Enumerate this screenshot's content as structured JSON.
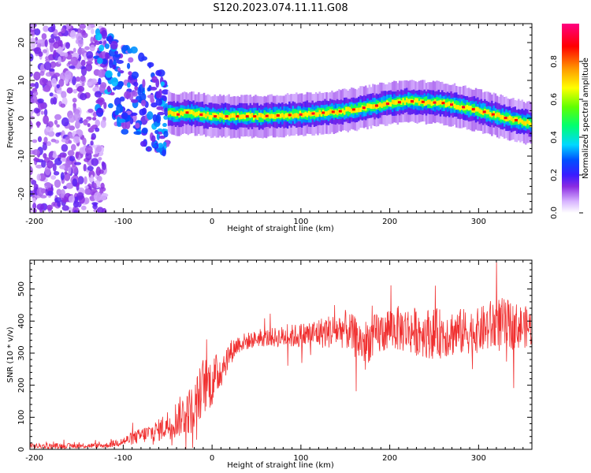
{
  "title": "S120.2023.074.11.11.G08",
  "chart_data": [
    {
      "type": "heatmap",
      "xlabel": "Height of straight line (km)",
      "ylabel": "Frequency (Hz)",
      "xlim": [
        -205,
        360
      ],
      "ylim": [
        -25,
        25
      ],
      "xticks": [
        -200,
        -100,
        0,
        100,
        200,
        300
      ],
      "yticks": [
        -20,
        -10,
        0,
        10,
        20
      ],
      "grid": false,
      "colorbar": {
        "label": "Normalized spectral amplitude",
        "range": [
          0,
          1
        ],
        "ticks": [
          "0.0",
          "0.2",
          "0.4",
          "0.6",
          "0.8"
        ],
        "colormap": "white-violet-blue-cyan-green-yellow-orange-red-magenta"
      },
      "ridge": {
        "description_points_x": [
          -50,
          -40,
          -30,
          0,
          50,
          100,
          150,
          200,
          220,
          260,
          300,
          330,
          360
        ],
        "frequency_hz": [
          1.5,
          1.0,
          1.5,
          0.5,
          0.5,
          1.0,
          2.0,
          4.0,
          4.5,
          4.0,
          2.0,
          0.0,
          -1.5
        ]
      }
    },
    {
      "type": "line",
      "xlabel": "Height of straight line (km)",
      "ylabel": "SNR (10 * v/v)",
      "xlim": [
        -205,
        360
      ],
      "ylim": [
        0,
        590
      ],
      "xticks": [
        -200,
        -100,
        0,
        100,
        200,
        300
      ],
      "yticks": [
        0,
        100,
        200,
        300,
        400,
        500
      ],
      "color": "#f03030",
      "grid": false,
      "envelope_x": [
        -205,
        -120,
        -100,
        -60,
        -40,
        -20,
        -10,
        0,
        10,
        20,
        30,
        50,
        100,
        150,
        170,
        200,
        250,
        300,
        320,
        360
      ],
      "envelope_mean": [
        10,
        12,
        25,
        60,
        95,
        130,
        200,
        210,
        250,
        300,
        330,
        345,
        355,
        375,
        330,
        380,
        360,
        370,
        390,
        380
      ],
      "envelope_spread": [
        8,
        8,
        15,
        35,
        60,
        80,
        90,
        80,
        60,
        40,
        30,
        25,
        40,
        60,
        70,
        70,
        80,
        70,
        90,
        60
      ]
    }
  ]
}
